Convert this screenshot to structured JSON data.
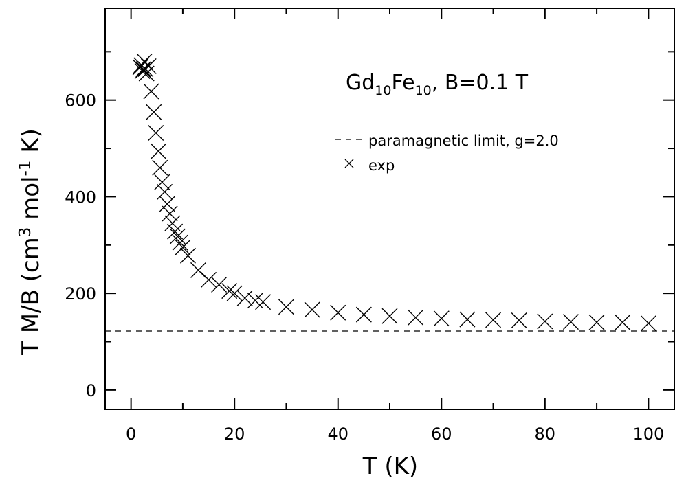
{
  "chart_data": {
    "type": "scatter",
    "title": "",
    "xlabel": "T (K)",
    "ylabel": {
      "part1": "T M/B (cm",
      "sup1": "3",
      "part2": " mol",
      "sup2": "-1",
      "part3": " K)"
    },
    "xlim": [
      -5,
      105
    ],
    "ylim": [
      -40,
      790
    ],
    "xticks": [
      0,
      20,
      40,
      60,
      80,
      100
    ],
    "yticks": [
      0,
      200,
      400,
      600
    ],
    "grid": false,
    "legend_position": "upper-middle",
    "annotation": {
      "base1": "Gd",
      "sub1": "10",
      "base2": "Fe",
      "sub2": "10",
      "rest": ", B=0.1 T"
    },
    "series": [
      {
        "name": "paramagnetic limit, g=2.0",
        "kind": "line",
        "style": "dashed",
        "x": [
          0,
          105
        ],
        "y": [
          122,
          122
        ]
      },
      {
        "name": "exp",
        "kind": "scatter",
        "marker": "x",
        "points": [
          [
            1.8,
            668
          ],
          [
            2.0,
            672
          ],
          [
            2.2,
            660
          ],
          [
            2.4,
            664
          ],
          [
            2.6,
            680
          ],
          [
            2.8,
            664
          ],
          [
            3.0,
            655
          ],
          [
            3.4,
            670
          ],
          [
            3.9,
            618
          ],
          [
            4.4,
            575
          ],
          [
            4.8,
            532
          ],
          [
            5.3,
            494
          ],
          [
            5.6,
            460
          ],
          [
            6.0,
            430
          ],
          [
            6.5,
            410
          ],
          [
            7.0,
            385
          ],
          [
            7.5,
            365
          ],
          [
            8.0,
            345
          ],
          [
            8.5,
            328
          ],
          [
            9.0,
            318
          ],
          [
            9.5,
            305
          ],
          [
            10.0,
            295
          ],
          [
            11.0,
            278
          ],
          [
            13.0,
            248
          ],
          [
            15.0,
            228
          ],
          [
            17.0,
            218
          ],
          [
            19.0,
            205
          ],
          [
            20.0,
            200
          ],
          [
            22.0,
            190
          ],
          [
            24.0,
            185
          ],
          [
            25.5,
            182
          ],
          [
            30.0,
            172
          ],
          [
            35.0,
            166
          ],
          [
            40.0,
            160
          ],
          [
            45.0,
            156
          ],
          [
            50.0,
            153
          ],
          [
            55.0,
            150
          ],
          [
            60.0,
            148
          ],
          [
            65.0,
            146
          ],
          [
            70.0,
            145
          ],
          [
            75.0,
            144
          ],
          [
            80.0,
            142
          ],
          [
            85.0,
            141
          ],
          [
            90.0,
            140
          ],
          [
            95.0,
            140
          ],
          [
            100.0,
            138
          ]
        ]
      }
    ]
  }
}
